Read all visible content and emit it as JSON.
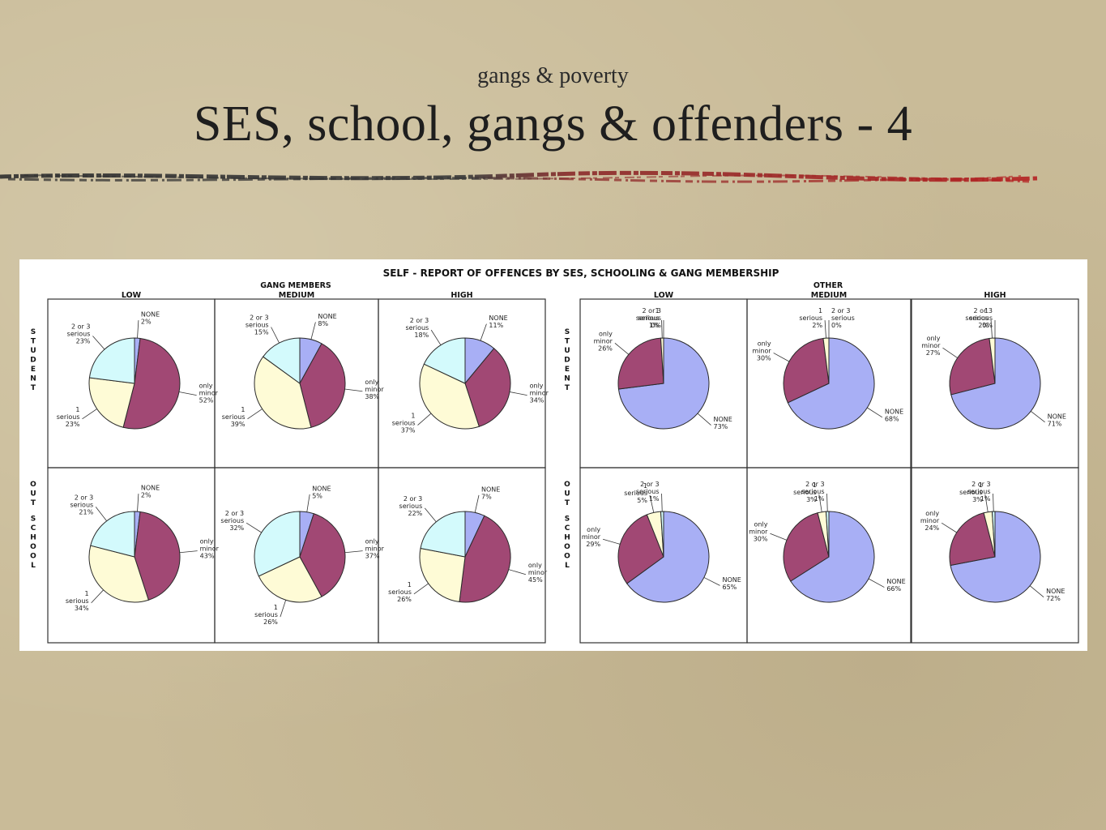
{
  "slide": {
    "subtitle": "gangs & poverty",
    "title": "SES, school, gangs & offenders - 4"
  },
  "colors": {
    "none": "#a8aff5",
    "only_minor": "#a14874",
    "one_serious": "#fefbd6",
    "two_or_three_serious": "#d3fafc",
    "rule_dark": "#3a3a3a",
    "rule_red": "#b02020"
  },
  "chart_data": {
    "type": "pie",
    "title": "SELF - REPORT OF OFFENCES BY SES, SCHOOLING & GANG MEMBERSHIP",
    "groups": [
      {
        "name": "GANG MEMBERS"
      },
      {
        "name": "OTHER"
      }
    ],
    "ses_levels": [
      "LOW",
      "MEDIUM",
      "HIGH"
    ],
    "rows": [
      "STUDENT",
      "OUT SCHOOL"
    ],
    "categories": [
      "NONE",
      "only minor",
      "1 serious",
      "2 or 3 serious"
    ],
    "category_labels": {
      "none": "NONE",
      "minor_1": "only",
      "minor_2": "minor",
      "one_1": "1",
      "one_2": "serious",
      "two_1": "2 or 3",
      "two_2": "serious"
    },
    "charts": [
      {
        "group": "GANG MEMBERS",
        "ses": "LOW",
        "row": "STUDENT",
        "values": [
          2,
          52,
          23,
          23
        ]
      },
      {
        "group": "GANG MEMBERS",
        "ses": "MEDIUM",
        "row": "STUDENT",
        "values": [
          8,
          38,
          39,
          15
        ]
      },
      {
        "group": "GANG MEMBERS",
        "ses": "HIGH",
        "row": "STUDENT",
        "values": [
          11,
          34,
          37,
          18
        ]
      },
      {
        "group": "GANG MEMBERS",
        "ses": "LOW",
        "row": "OUT SCHOOL",
        "values": [
          2,
          43,
          34,
          21
        ]
      },
      {
        "group": "GANG MEMBERS",
        "ses": "MEDIUM",
        "row": "OUT SCHOOL",
        "values": [
          5,
          37,
          26,
          32
        ]
      },
      {
        "group": "GANG MEMBERS",
        "ses": "HIGH",
        "row": "OUT SCHOOL",
        "values": [
          7,
          45,
          26,
          22
        ]
      },
      {
        "group": "OTHER",
        "ses": "LOW",
        "row": "STUDENT",
        "values": [
          73,
          26,
          1,
          0
        ]
      },
      {
        "group": "OTHER",
        "ses": "MEDIUM",
        "row": "STUDENT",
        "values": [
          68,
          30,
          2,
          0
        ]
      },
      {
        "group": "OTHER",
        "ses": "HIGH",
        "row": "STUDENT",
        "values": [
          71,
          27,
          2,
          0
        ]
      },
      {
        "group": "OTHER",
        "ses": "LOW",
        "row": "OUT SCHOOL",
        "values": [
          65,
          29,
          5,
          1
        ]
      },
      {
        "group": "OTHER",
        "ses": "MEDIUM",
        "row": "OUT SCHOOL",
        "values": [
          66,
          30,
          3,
          1
        ]
      },
      {
        "group": "OTHER",
        "ses": "HIGH",
        "row": "OUT SCHOOL",
        "values": [
          72,
          24,
          3,
          1
        ]
      }
    ]
  }
}
